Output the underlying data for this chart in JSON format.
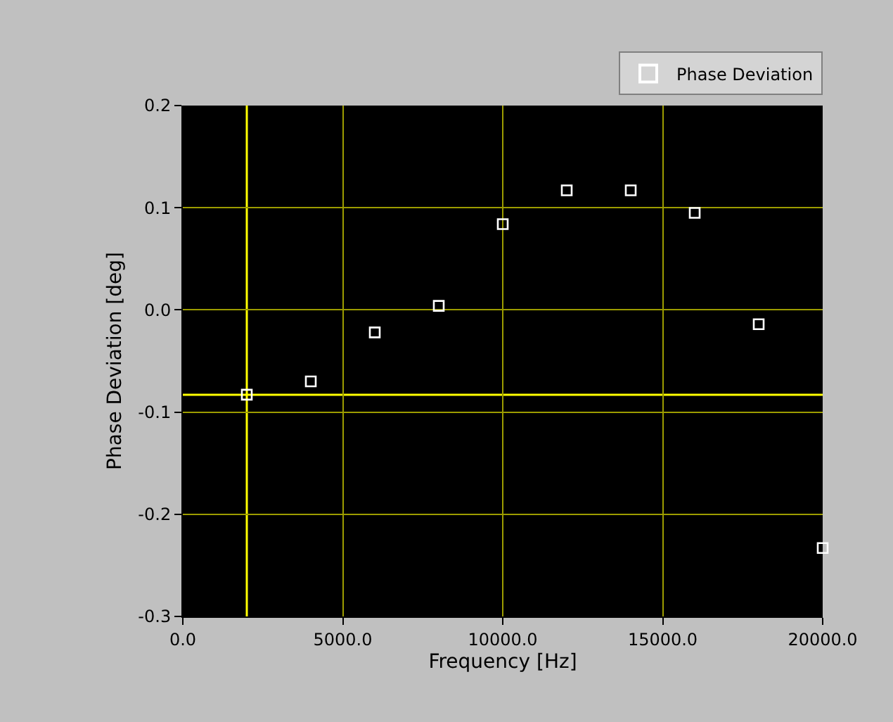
{
  "chart_data": {
    "type": "scatter",
    "xlabel": "Frequency [Hz]",
    "ylabel": "Phase Deviation [deg]",
    "x": [
      2000,
      4000,
      6000,
      8000,
      10000,
      12000,
      14000,
      16000,
      18000,
      20000
    ],
    "series": [
      {
        "name": "Phase Deviation",
        "color": "#ffffff",
        "values": [
          -0.083,
          -0.07,
          -0.022,
          0.004,
          0.084,
          0.117,
          0.117,
          0.095,
          -0.014,
          -0.233
        ]
      }
    ],
    "xlim": [
      0,
      20000
    ],
    "ylim": [
      -0.3,
      0.2
    ],
    "xticks": [
      {
        "value": 0,
        "label": "0.0"
      },
      {
        "value": 5000,
        "label": "5000.0"
      },
      {
        "value": 10000,
        "label": "10000.0"
      },
      {
        "value": 15000,
        "label": "15000.0"
      },
      {
        "value": 20000,
        "label": "20000.0"
      }
    ],
    "yticks": [
      {
        "value": -0.3,
        "label": "-0.3"
      },
      {
        "value": -0.2,
        "label": "-0.2"
      },
      {
        "value": -0.1,
        "label": "-0.1"
      },
      {
        "value": 0,
        "label": "0.0"
      },
      {
        "value": 0.1,
        "label": "0.1"
      },
      {
        "value": 0.2,
        "label": "0.2"
      }
    ],
    "ref_lines": [
      {
        "axis": "x",
        "value": 2000,
        "color": "#ffff00"
      },
      {
        "axis": "y",
        "value": -0.083,
        "color": "#ffff00"
      }
    ],
    "grid": true,
    "legend": "top right",
    "marker": "square"
  }
}
